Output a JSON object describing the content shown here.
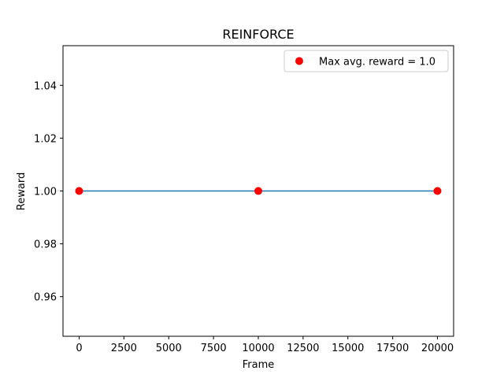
{
  "chart_data": {
    "type": "line",
    "title": "REINFORCE",
    "xlabel": "Frame",
    "ylabel": "Reward",
    "x": [
      0,
      10000,
      20000
    ],
    "series": [
      {
        "values": [
          1.0,
          1.0,
          1.0
        ],
        "color": "#1f77b4",
        "marker_color": "#ff0000"
      }
    ],
    "legend": {
      "label": "Max avg. reward = 1.0",
      "placement": "top-right",
      "marker_color": "#ff0000"
    },
    "xlim": [
      -900,
      20900
    ],
    "ylim": [
      0.945,
      1.055
    ],
    "xticks": [
      0,
      2500,
      5000,
      7500,
      10000,
      12500,
      15000,
      17500,
      20000
    ],
    "xtick_labels": [
      "0",
      "2500",
      "5000",
      "7500",
      "10000",
      "12500",
      "15000",
      "17500",
      "20000"
    ],
    "yticks": [
      0.96,
      0.98,
      1.0,
      1.02,
      1.04
    ],
    "ytick_labels": [
      "0.96",
      "0.98",
      "1.00",
      "1.02",
      "1.04"
    ],
    "grid": false
  }
}
